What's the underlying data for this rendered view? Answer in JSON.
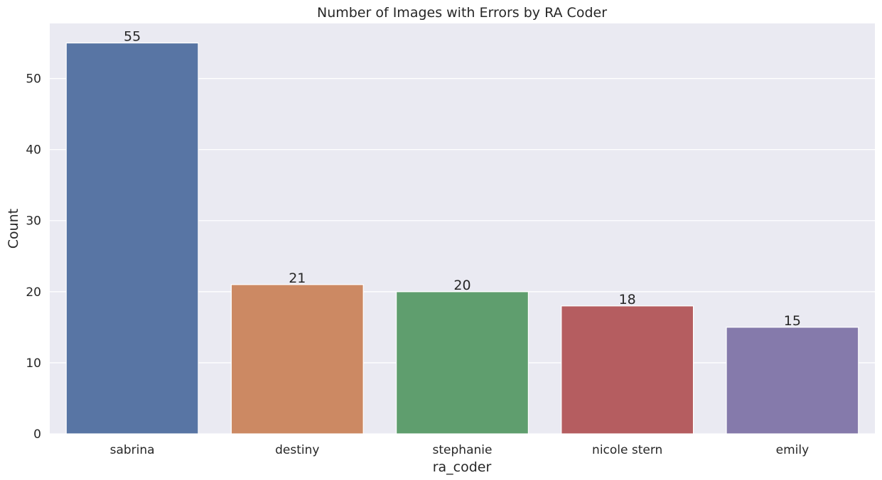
{
  "chart_data": {
    "type": "bar",
    "title": "Number of Images with Errors by RA Coder",
    "xlabel": "ra_coder",
    "ylabel": "Count",
    "categories": [
      "sabrina",
      "destiny",
      "stephanie",
      "nicole stern",
      "emily"
    ],
    "values": [
      55,
      21,
      20,
      18,
      15
    ],
    "data_labels": [
      "55",
      "21",
      "20",
      "18",
      "15"
    ],
    "colors": [
      "#5875a4",
      "#cc8963",
      "#5f9e6e",
      "#b55d60",
      "#857aab"
    ],
    "ylim": [
      0,
      57.75
    ],
    "yticks": [
      0,
      10,
      20,
      30,
      40,
      50
    ],
    "ytick_labels": [
      "0",
      "10",
      "20",
      "30",
      "40",
      "50"
    ],
    "grid": true,
    "background": "#eaeaf2"
  }
}
